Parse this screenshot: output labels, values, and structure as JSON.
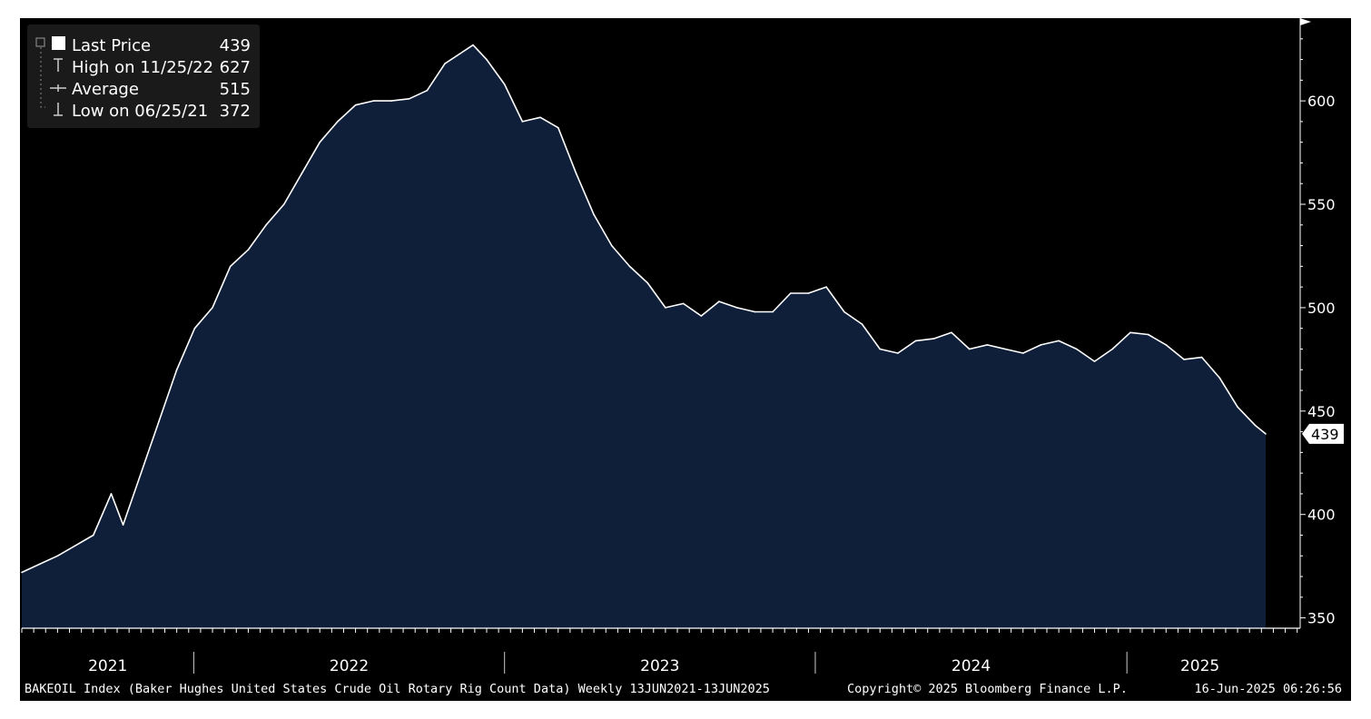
{
  "colors": {
    "background": "#000000",
    "area_fill": "#0f1f3a",
    "line": "#ffffff",
    "text": "#ffffff",
    "last_price_badge_bg": "#ffffff",
    "last_price_badge_text": "#000000"
  },
  "legend": {
    "items": [
      {
        "label": "Last Price",
        "value": "439",
        "icon": "filled-square-icon"
      },
      {
        "label": "High on 11/25/22",
        "value": "627",
        "icon": "high-marker-icon"
      },
      {
        "label": "Average",
        "value": "515",
        "icon": "average-marker-icon"
      },
      {
        "label": "Low on 06/25/21",
        "value": "372",
        "icon": "low-marker-icon"
      }
    ]
  },
  "last_price_badge": "439",
  "footer": {
    "description": "BAKEOIL Index (Baker Hughes United States Crude Oil Rotary Rig Count Data)  Weekly 13JUN2021-13JUN2025",
    "copyright": "Copyright© 2025 Bloomberg Finance L.P.",
    "timestamp": "16-Jun-2025 06:26:56"
  },
  "chart_data": {
    "type": "area",
    "title": "",
    "xlabel": "",
    "ylabel": "",
    "frequency": "Weekly",
    "date_range": [
      "2021-06-13",
      "2025-06-13"
    ],
    "ylim": [
      345,
      640
    ],
    "y_ticks": [
      350,
      400,
      450,
      500,
      550,
      600
    ],
    "y_axis_position": "right",
    "x_year_labels": [
      "2021",
      "2022",
      "2023",
      "2024",
      "2025"
    ],
    "grid": false,
    "legend_position": "top-left",
    "series": [
      {
        "name": "Last Price",
        "x": [
          "2021-06-13",
          "2021-07-04",
          "2021-07-25",
          "2021-08-15",
          "2021-09-05",
          "2021-09-26",
          "2021-10-10",
          "2021-10-31",
          "2021-11-21",
          "2021-12-12",
          "2022-01-02",
          "2022-01-23",
          "2022-02-13",
          "2022-03-06",
          "2022-03-27",
          "2022-04-17",
          "2022-05-08",
          "2022-05-29",
          "2022-06-19",
          "2022-07-10",
          "2022-07-31",
          "2022-08-21",
          "2022-09-11",
          "2022-10-02",
          "2022-10-23",
          "2022-11-25",
          "2022-12-11",
          "2023-01-01",
          "2023-01-22",
          "2023-02-12",
          "2023-03-05",
          "2023-03-26",
          "2023-04-16",
          "2023-05-07",
          "2023-05-28",
          "2023-06-18",
          "2023-07-09",
          "2023-07-30",
          "2023-08-20",
          "2023-09-10",
          "2023-10-01",
          "2023-10-22",
          "2023-11-12",
          "2023-12-03",
          "2023-12-24",
          "2024-01-14",
          "2024-02-04",
          "2024-02-25",
          "2024-03-17",
          "2024-04-07",
          "2024-04-28",
          "2024-05-19",
          "2024-06-09",
          "2024-06-30",
          "2024-07-21",
          "2024-08-11",
          "2024-09-01",
          "2024-09-22",
          "2024-10-13",
          "2024-11-03",
          "2024-11-24",
          "2024-12-15",
          "2025-01-05",
          "2025-01-26",
          "2025-02-16",
          "2025-03-09",
          "2025-03-30",
          "2025-04-20",
          "2025-05-11",
          "2025-06-01",
          "2025-06-13"
        ],
        "values": [
          372,
          376,
          380,
          385,
          390,
          410,
          395,
          420,
          445,
          470,
          490,
          500,
          520,
          528,
          540,
          550,
          565,
          580,
          590,
          598,
          600,
          600,
          601,
          605,
          618,
          627,
          620,
          608,
          590,
          592,
          587,
          565,
          545,
          530,
          520,
          512,
          500,
          502,
          496,
          503,
          500,
          498,
          498,
          507,
          507,
          510,
          498,
          492,
          480,
          478,
          484,
          485,
          488,
          480,
          482,
          480,
          478,
          482,
          484,
          480,
          474,
          480,
          488,
          487,
          482,
          475,
          476,
          466,
          452,
          443,
          439
        ]
      }
    ],
    "annotations": {
      "last_price": 439,
      "high": {
        "date": "11/25/22",
        "value": 627
      },
      "average": 515,
      "low": {
        "date": "06/25/21",
        "value": 372
      }
    }
  }
}
